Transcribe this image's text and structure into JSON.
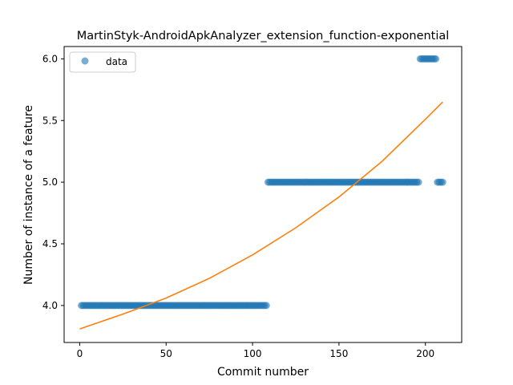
{
  "chart_data": {
    "type": "scatter",
    "title": "MartinStyk-AndroidApkAnalyzer_extension_function-exponential",
    "xlabel": "Commit number",
    "ylabel": "Number of instance of a feature",
    "xlim": [
      -9,
      221
    ],
    "ylim": [
      3.7,
      6.1
    ],
    "xticks": [
      0,
      50,
      100,
      150,
      200
    ],
    "yticks": [
      4.0,
      4.5,
      5.0,
      5.5,
      6.0
    ],
    "ytick_labels": [
      "4.0",
      "4.5",
      "5.0",
      "5.5",
      "6.0"
    ],
    "legend": {
      "position": "top-left",
      "entries": [
        "data"
      ]
    },
    "series": [
      {
        "name": "data",
        "kind": "scatter",
        "color": "#1f77b4",
        "segments": [
          {
            "x_start": 1,
            "x_end": 108,
            "y": 4
          },
          {
            "x_start": 109,
            "x_end": 196,
            "y": 5
          },
          {
            "x_start": 197,
            "x_end": 206,
            "y": 6
          },
          {
            "x_start": 207,
            "x_end": 210,
            "y": 5
          }
        ]
      },
      {
        "kind": "line",
        "color": "#ff7f0e",
        "x": [
          0,
          25,
          50,
          75,
          100,
          125,
          150,
          175,
          200,
          210
        ],
        "y": [
          3.81,
          3.93,
          4.06,
          4.22,
          4.41,
          4.63,
          4.88,
          5.17,
          5.51,
          5.65
        ]
      }
    ]
  }
}
